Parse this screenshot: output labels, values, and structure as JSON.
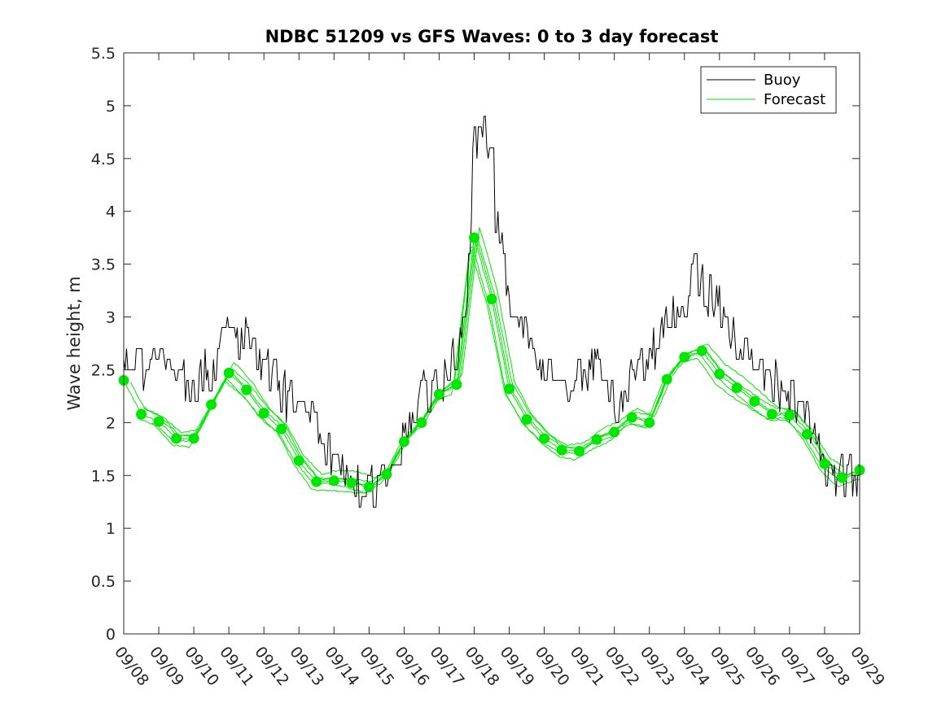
{
  "chart_data": {
    "type": "line",
    "title": "NDBC 51209 vs GFS Waves: 0 to 3 day forecast",
    "xlabel": "",
    "ylabel": "Wave height, m",
    "xlim": [
      0,
      21
    ],
    "ylim": [
      0,
      5.5
    ],
    "y_ticks": [
      0,
      0.5,
      1,
      1.5,
      2,
      2.5,
      3,
      3.5,
      4,
      4.5,
      5,
      5.5
    ],
    "y_tick_labels": [
      "0",
      "0.5",
      "1",
      "1.5",
      "2",
      "2.5",
      "3",
      "3.5",
      "4",
      "4.5",
      "5",
      "5.5"
    ],
    "x_ticks": [
      0,
      1,
      2,
      3,
      4,
      5,
      6,
      7,
      8,
      9,
      10,
      11,
      12,
      13,
      14,
      15,
      16,
      17,
      18,
      19,
      20,
      21
    ],
    "x_tick_labels": [
      "09/08",
      "09/09",
      "09/10",
      "09/11",
      "09/12",
      "09/13",
      "09/14",
      "09/15",
      "09/16",
      "09/17",
      "09/18",
      "09/19",
      "09/20",
      "09/21",
      "09/22",
      "09/23",
      "09/24",
      "09/25",
      "09/26",
      "09/27",
      "09/28",
      "09/29"
    ],
    "grid": false,
    "legend_position": "top-right",
    "legend": [
      "Buoy",
      "Forecast"
    ],
    "colors": {
      "buoy": "#000000",
      "forecast": "#00e600",
      "axis": "#262626"
    },
    "series": [
      {
        "name": "Buoy",
        "x": [
          0,
          0.5,
          1,
          1.5,
          2,
          2.5,
          3,
          3.5,
          4,
          4.5,
          5,
          5.5,
          6,
          6.5,
          7,
          7.5,
          8,
          8.5,
          9,
          9.5,
          9.8,
          10,
          10.2,
          10.4,
          10.6,
          11,
          11.5,
          12,
          12.5,
          13,
          13.5,
          14,
          14.5,
          15,
          15.5,
          16,
          16.3,
          16.6,
          17,
          17.5,
          18,
          18.5,
          19,
          19.5,
          20,
          20.3,
          20.6,
          21
        ],
        "values": [
          2.6,
          2.5,
          2.6,
          2.5,
          2.4,
          2.5,
          2.9,
          2.8,
          2.5,
          2.3,
          2.1,
          1.9,
          1.6,
          1.45,
          1.4,
          1.5,
          1.9,
          2.3,
          2.4,
          2.6,
          3.2,
          4.7,
          4.8,
          4.6,
          4.0,
          3.1,
          2.8,
          2.5,
          2.2,
          2.4,
          2.5,
          2.2,
          2.4,
          2.6,
          3.0,
          3.2,
          3.4,
          3.2,
          3.1,
          2.8,
          2.5,
          2.4,
          2.2,
          2.0,
          1.6,
          1.45,
          1.45,
          1.5
        ]
      },
      {
        "name": "Forecast",
        "x": [
          0,
          0.5,
          1,
          1.5,
          2,
          2.5,
          3,
          3.5,
          4,
          4.5,
          5,
          5.5,
          6,
          6.5,
          7,
          7.5,
          8,
          8.5,
          9,
          9.5,
          10,
          10.5,
          11,
          11.5,
          12,
          12.5,
          13,
          13.5,
          14,
          14.5,
          15,
          15.5,
          16,
          16.5,
          17,
          17.5,
          18,
          18.5,
          19,
          19.5,
          20,
          20.5,
          21
        ],
        "values": [
          2.4,
          2.08,
          2.01,
          1.85,
          1.85,
          2.17,
          2.47,
          2.31,
          2.09,
          1.94,
          1.64,
          1.44,
          1.45,
          1.43,
          1.39,
          1.51,
          1.82,
          2.0,
          2.27,
          2.36,
          3.75,
          3.17,
          2.32,
          2.03,
          1.85,
          1.74,
          1.73,
          1.84,
          1.91,
          2.05,
          2.0,
          2.41,
          2.62,
          2.68,
          2.46,
          2.33,
          2.2,
          2.08,
          2.07,
          1.89,
          1.61,
          1.48,
          1.55
        ]
      }
    ]
  }
}
